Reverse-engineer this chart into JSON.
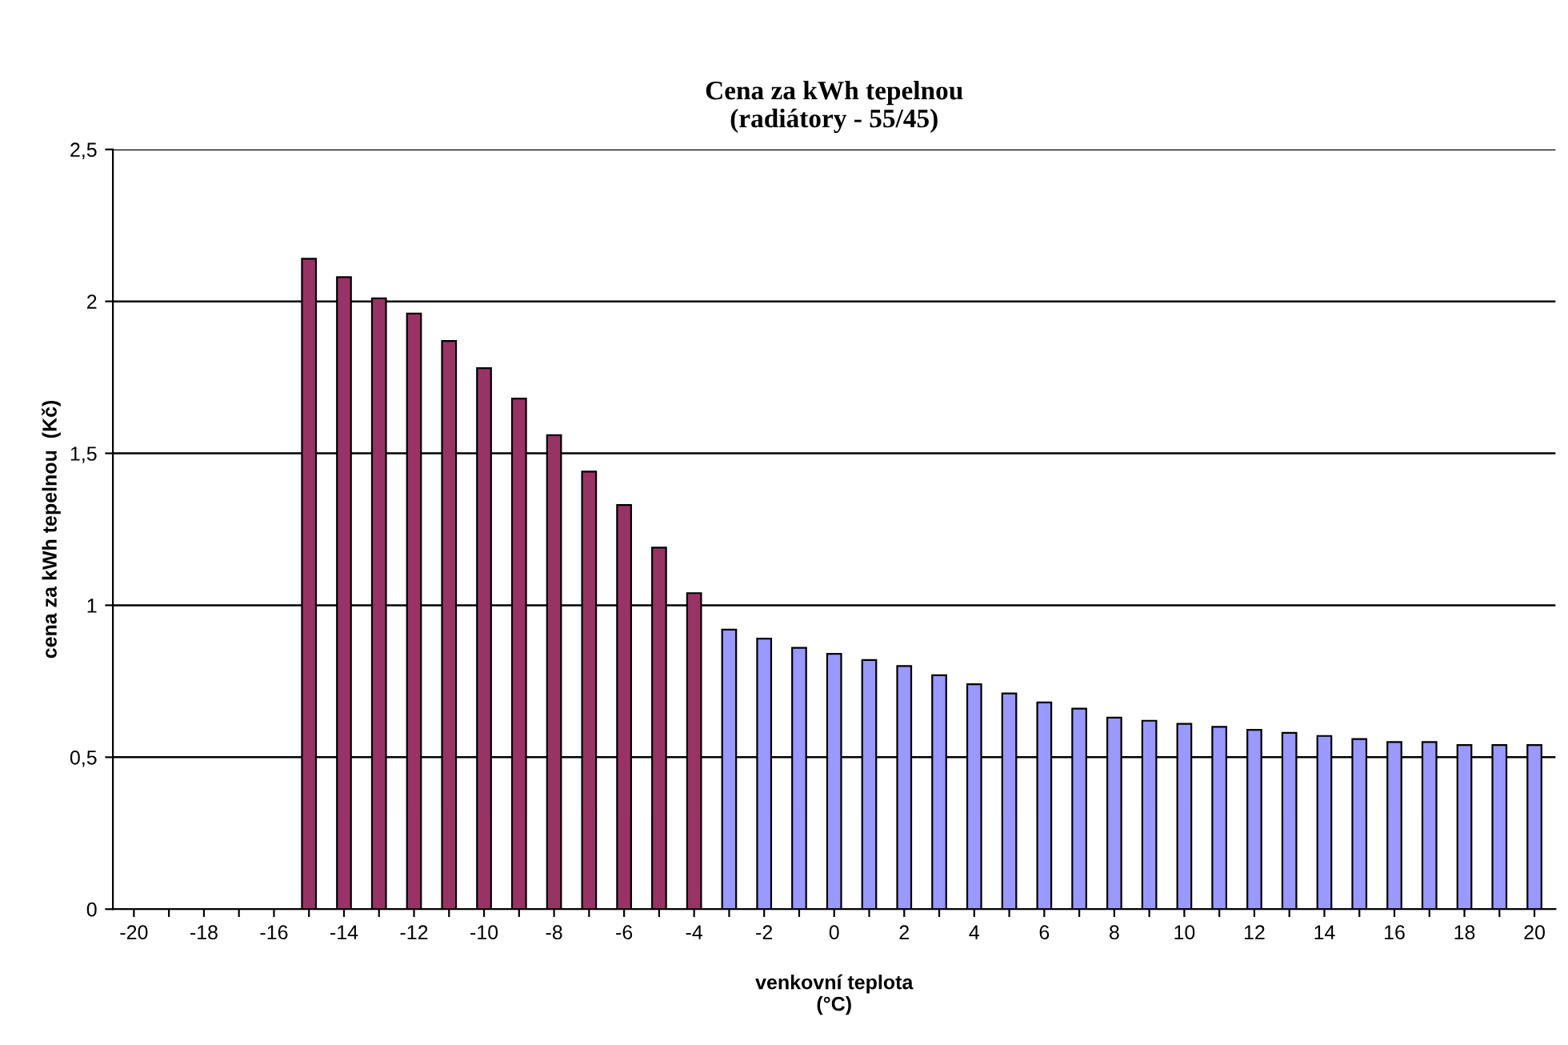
{
  "chart_data": {
    "type": "bar",
    "title": "Cena za kWh tepelnou\n(radiátory - 55/45)",
    "xlabel": "venkovní teplota\n(°C)",
    "ylabel": "cena za kWh tepelnou  (Kč)",
    "categories": [
      "-20",
      null,
      "-18",
      null,
      "-16",
      null,
      "-14",
      null,
      "-12",
      null,
      "-10",
      null,
      "-8",
      null,
      "-6",
      null,
      "-4",
      null,
      "-2",
      null,
      "0",
      null,
      "2",
      null,
      "4",
      null,
      "6",
      null,
      "8",
      null,
      "10",
      null,
      "12",
      null,
      "14",
      null,
      "16",
      null,
      "18",
      null,
      "20"
    ],
    "series": [
      {
        "color": "#993366",
        "values": [
          null,
          null,
          null,
          null,
          null,
          2.14,
          2.08,
          2.01,
          1.96,
          1.87,
          1.78,
          1.68,
          1.56,
          1.44,
          1.33,
          1.19,
          1.04,
          null,
          null,
          null,
          null,
          null,
          null,
          null,
          null,
          null,
          null,
          null,
          null,
          null,
          null,
          null,
          null,
          null,
          null,
          null,
          null,
          null,
          null,
          null,
          null
        ]
      },
      {
        "color": "#9999ff",
        "values": [
          null,
          null,
          null,
          null,
          null,
          null,
          null,
          null,
          null,
          null,
          null,
          null,
          null,
          null,
          null,
          null,
          null,
          0.92,
          0.89,
          0.86,
          0.84,
          0.82,
          0.8,
          0.77,
          0.74,
          0.71,
          0.68,
          0.66,
          0.63,
          0.62,
          0.61,
          0.6,
          0.59,
          0.58,
          0.57,
          0.56,
          0.55,
          0.55,
          0.54,
          0.54,
          0.54
        ]
      }
    ],
    "ylim": [
      0,
      2.5
    ],
    "yticks": [
      0,
      {
        "value": 0.5,
        "label": "0,5"
      },
      1,
      {
        "value": 1.5,
        "label": "1,5"
      },
      2,
      {
        "value": 2.5,
        "label": "2,5"
      }
    ],
    "grid": "y"
  }
}
